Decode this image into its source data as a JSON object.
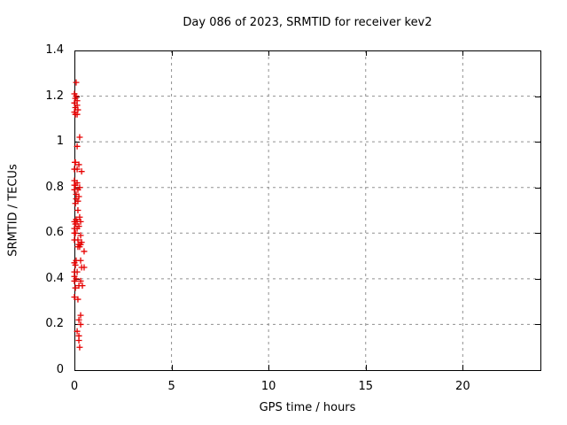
{
  "figure": {
    "background_color": "#ffffff",
    "text_color": "#000000"
  },
  "chart_data": {
    "type": "scatter",
    "title": "Day 086 of 2023, SRMTID for receiver kev2",
    "xlabel": "GPS time / hours",
    "ylabel": "SRMTID / TECUs",
    "xlim": [
      0,
      24
    ],
    "ylim": [
      0,
      1.4
    ],
    "xticks": [
      0,
      5,
      10,
      15,
      20
    ],
    "xtick_labels": [
      "0",
      "5",
      "10",
      "15",
      "20"
    ],
    "yticks": [
      0,
      0.2,
      0.4,
      0.6,
      0.8,
      1,
      1.2,
      1.4
    ],
    "ytick_labels": [
      "0",
      "0.2",
      "0.4",
      "0.6",
      "0.8",
      "1",
      "1.2",
      "1.4"
    ],
    "grid": true,
    "grid_style": "dashed",
    "legend_position": "none",
    "marker": "plus",
    "marker_color": "#e60000",
    "grid_color": "#909090",
    "axis_color": "#000000",
    "series": [
      {
        "name": "SRMTID",
        "points": [
          [
            0.09,
            1.26
          ],
          [
            0.0,
            1.21
          ],
          [
            0.09,
            1.2
          ],
          [
            0.05,
            1.19
          ],
          [
            0.14,
            1.18
          ],
          [
            0.0,
            1.17
          ],
          [
            0.14,
            1.16
          ],
          [
            0.05,
            1.15
          ],
          [
            0.18,
            1.14
          ],
          [
            0.0,
            1.13
          ],
          [
            0.05,
            1.12
          ],
          [
            0.14,
            1.12
          ],
          [
            0.27,
            1.02
          ],
          [
            0.14,
            0.98
          ],
          [
            0.02,
            0.91
          ],
          [
            0.05,
            0.91
          ],
          [
            0.23,
            0.9
          ],
          [
            0.0,
            0.88
          ],
          [
            0.14,
            0.88
          ],
          [
            0.37,
            0.87
          ],
          [
            0.0,
            0.83
          ],
          [
            0.14,
            0.82
          ],
          [
            0.0,
            0.81
          ],
          [
            0.05,
            0.81
          ],
          [
            0.27,
            0.8
          ],
          [
            0.0,
            0.79
          ],
          [
            0.18,
            0.79
          ],
          [
            0.09,
            0.77
          ],
          [
            0.23,
            0.76
          ],
          [
            0.09,
            0.75
          ],
          [
            0.18,
            0.74
          ],
          [
            0.05,
            0.73
          ],
          [
            0.18,
            0.7
          ],
          [
            0.27,
            0.67
          ],
          [
            0.09,
            0.66
          ],
          [
            0.0,
            0.65
          ],
          [
            0.14,
            0.65
          ],
          [
            0.32,
            0.65
          ],
          [
            0.05,
            0.64
          ],
          [
            0.23,
            0.63
          ],
          [
            0.0,
            0.62
          ],
          [
            0.14,
            0.62
          ],
          [
            0.0,
            0.6
          ],
          [
            0.05,
            0.6
          ],
          [
            0.32,
            0.59
          ],
          [
            0.0,
            0.57
          ],
          [
            0.18,
            0.57
          ],
          [
            0.37,
            0.56
          ],
          [
            0.23,
            0.55
          ],
          [
            0.32,
            0.55
          ],
          [
            0.27,
            0.54
          ],
          [
            0.18,
            0.54
          ],
          [
            0.5,
            0.52
          ],
          [
            0.09,
            0.48
          ],
          [
            0.32,
            0.48
          ],
          [
            0.0,
            0.47
          ],
          [
            0.05,
            0.46
          ],
          [
            0.37,
            0.45
          ],
          [
            0.5,
            0.45
          ],
          [
            0.0,
            0.43
          ],
          [
            0.14,
            0.43
          ],
          [
            0.0,
            0.41
          ],
          [
            0.09,
            0.4
          ],
          [
            0.0,
            0.39
          ],
          [
            0.32,
            0.39
          ],
          [
            0.23,
            0.37
          ],
          [
            0.41,
            0.37
          ],
          [
            0.05,
            0.36
          ],
          [
            0.0,
            0.32
          ],
          [
            0.18,
            0.31
          ],
          [
            0.32,
            0.24
          ],
          [
            0.23,
            0.22
          ],
          [
            0.32,
            0.2
          ],
          [
            0.14,
            0.17
          ],
          [
            0.23,
            0.15
          ],
          [
            0.23,
            0.13
          ],
          [
            0.27,
            0.1
          ]
        ]
      }
    ]
  }
}
